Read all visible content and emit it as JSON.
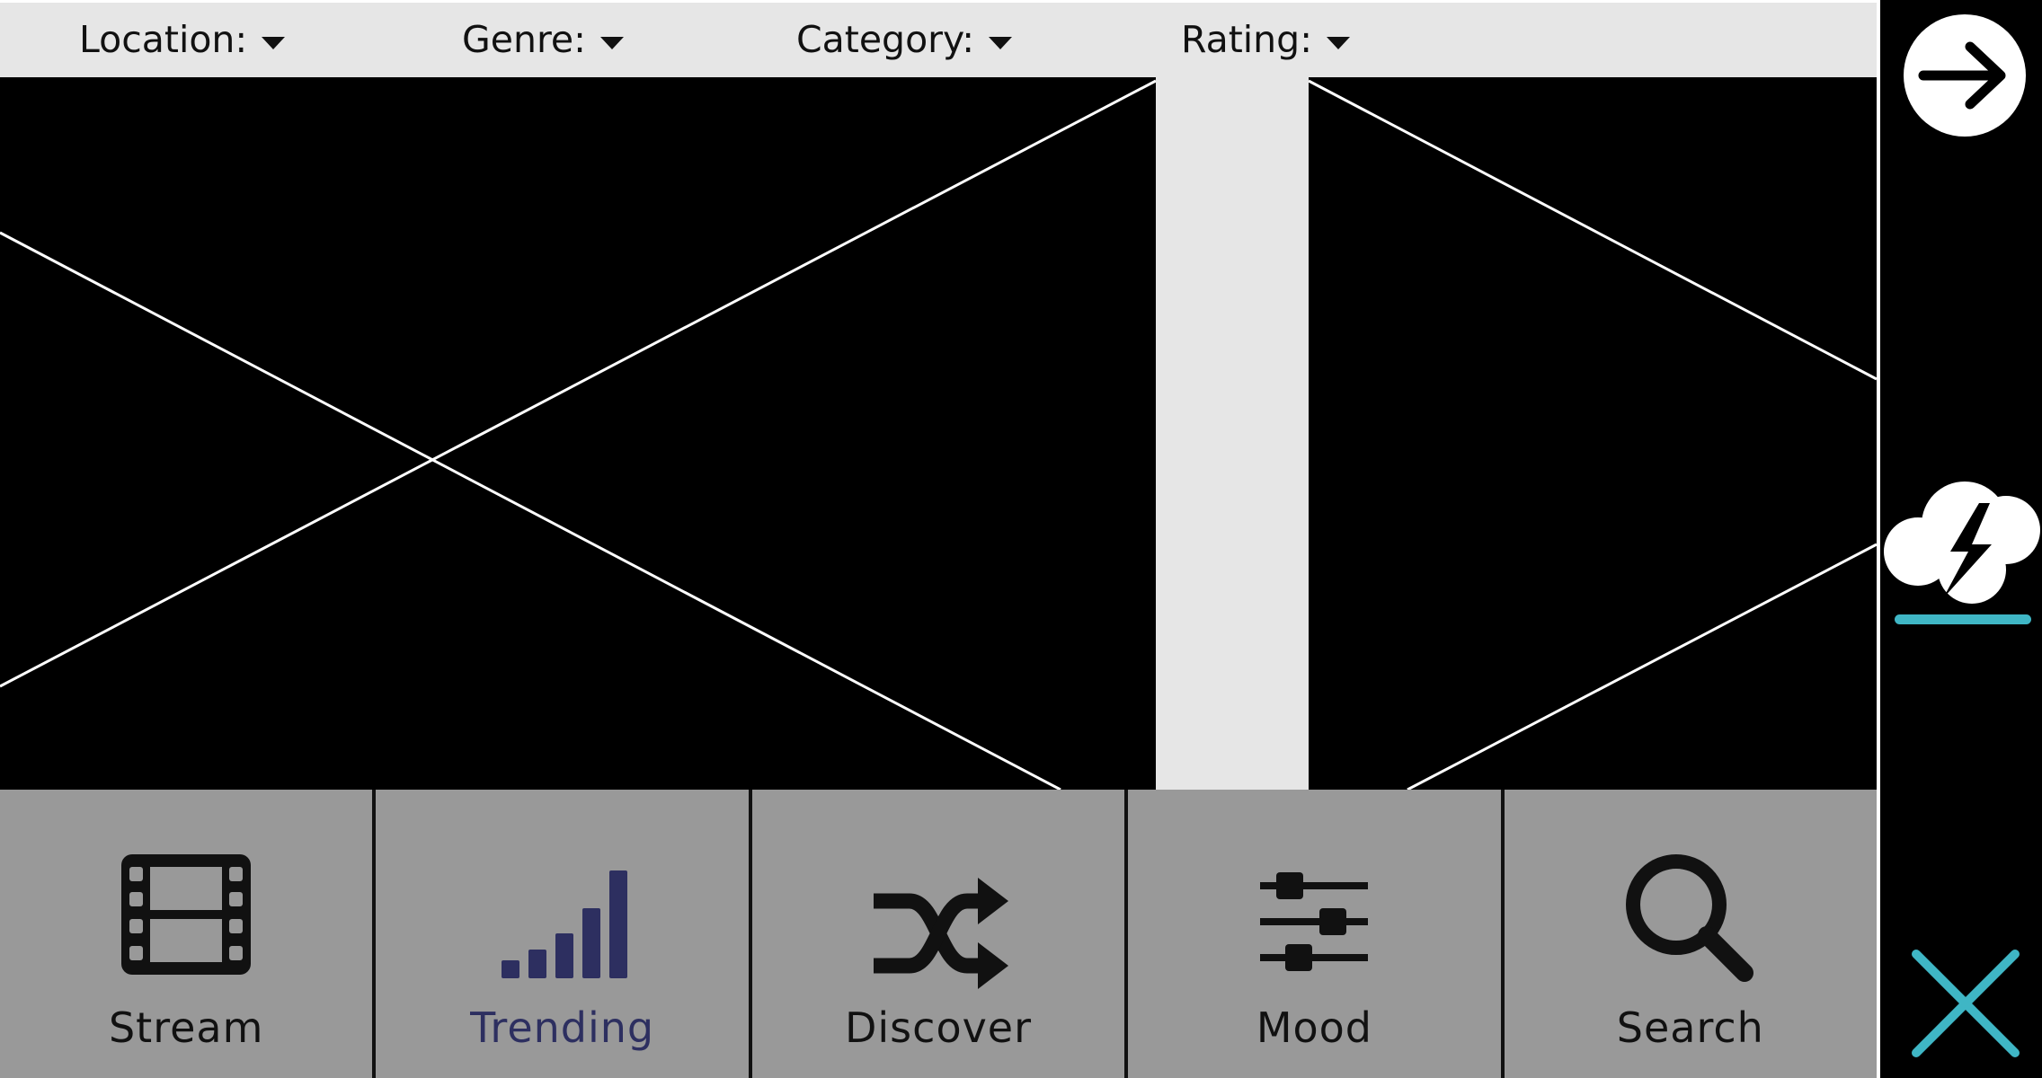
{
  "filters": {
    "location": "Location:",
    "genre": "Genre:",
    "category": "Category:",
    "rating": "Rating:"
  },
  "nav": {
    "items": [
      {
        "label": "Stream",
        "icon": "film-icon"
      },
      {
        "label": "Trending",
        "icon": "signal-bars-icon",
        "active": true
      },
      {
        "label": "Discover",
        "icon": "shuffle-icon"
      },
      {
        "label": "Mood",
        "icon": "sliders-icon"
      },
      {
        "label": "Search",
        "icon": "search-icon"
      }
    ]
  },
  "rail": {
    "next_icon": "arrow-right-circle-icon",
    "weather_icon": "thunderstorm-cloud-icon",
    "close_icon": "close-icon"
  },
  "colors": {
    "filter_bar": "#e6e6e6",
    "nav_bg": "#999999",
    "active_label": "#2d2f60",
    "accent": "#3fb6c5",
    "rail_bg": "#000000"
  }
}
